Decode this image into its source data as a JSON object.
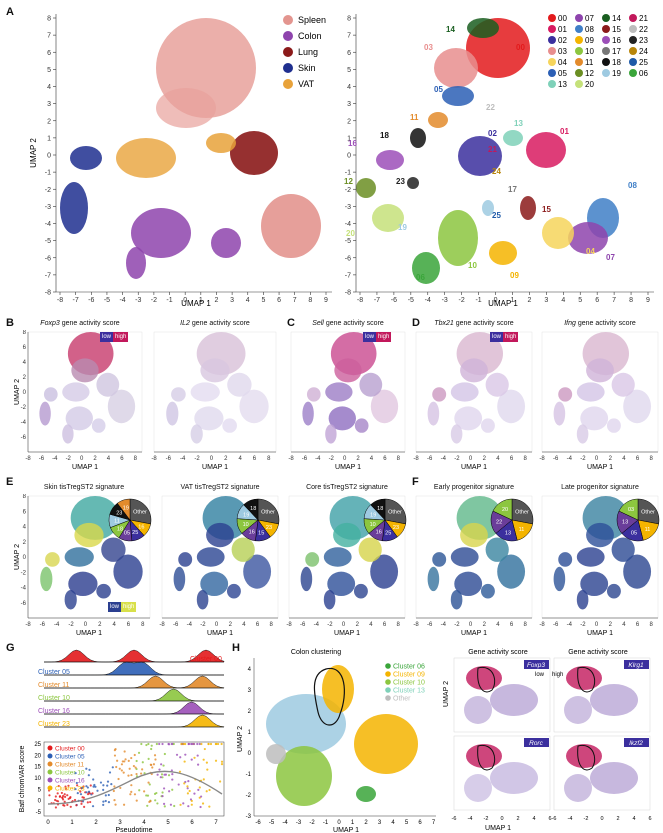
{
  "panels": {
    "A": "A",
    "B": "B",
    "C": "C",
    "D": "D",
    "E": "E",
    "F": "F",
    "G": "G",
    "H": "H"
  },
  "axis": {
    "umap1": "UMAP 1",
    "umap2": "UMAP 2"
  },
  "legendA": [
    {
      "label": "Spleen",
      "color": "#e3958f"
    },
    {
      "label": "Colon",
      "color": "#8e44ad"
    },
    {
      "label": "Lung",
      "color": "#8b1a1a"
    },
    {
      "label": "Skin",
      "color": "#1f2f8f"
    },
    {
      "label": "VAT",
      "color": "#e8a23a"
    }
  ],
  "clusters": [
    {
      "id": "00",
      "color": "#e31a1c"
    },
    {
      "id": "07",
      "color": "#8e44ad"
    },
    {
      "id": "14",
      "color": "#1a5e20"
    },
    {
      "id": "21",
      "color": "#c2185b"
    },
    {
      "id": "01",
      "color": "#d81b60"
    },
    {
      "id": "08",
      "color": "#3f7fc7"
    },
    {
      "id": "15",
      "color": "#8b1a1a"
    },
    {
      "id": "22",
      "color": "#bdbdbd"
    },
    {
      "id": "02",
      "color": "#3b2f9e"
    },
    {
      "id": "09",
      "color": "#f4b400"
    },
    {
      "id": "16",
      "color": "#9c4fb8"
    },
    {
      "id": "23",
      "color": "#222222"
    },
    {
      "id": "03",
      "color": "#e88e8e"
    },
    {
      "id": "10",
      "color": "#8cc63f"
    },
    {
      "id": "17",
      "color": "#777777"
    },
    {
      "id": "24",
      "color": "#b8860b"
    },
    {
      "id": "04",
      "color": "#f6d55c"
    },
    {
      "id": "11",
      "color": "#e38b2c"
    },
    {
      "id": "18",
      "color": "#111111"
    },
    {
      "id": "25",
      "color": "#1e5aa8"
    },
    {
      "id": "05",
      "color": "#2c5fb5"
    },
    {
      "id": "12",
      "color": "#6b8e23"
    },
    {
      "id": "19",
      "color": "#9ecae1"
    },
    {
      "id": "06",
      "color": "#3aa53a"
    },
    {
      "id": "13",
      "color": "#7fd1b9"
    },
    {
      "id": "20",
      "color": "#c5e17a"
    }
  ],
  "titles": {
    "B1": [
      "Foxp3",
      " gene activity score"
    ],
    "B2": [
      "IL2",
      " gene activity score"
    ],
    "C1": [
      "Sell",
      " gene activity score"
    ],
    "D1": [
      "Tbx21",
      " gene activity score"
    ],
    "D2": [
      "Ifng",
      " gene activity score"
    ],
    "E1": "Skin tisTregST2 signature",
    "E2": "VAT tisTregST2 signature",
    "E3": "Core tisTregST2 signature",
    "F1": "Early progenitor signature",
    "F2": "Late progenitor signature",
    "H1": "Colon clustering",
    "H2": "Gene activity score",
    "H3": "Gene activity score"
  },
  "scale": {
    "low": "low",
    "high": "high"
  },
  "pies": {
    "E1": [
      "Other",
      "16",
      "25",
      "05",
      "18",
      "11",
      "23",
      "19"
    ],
    "E2": [
      "Other",
      "23",
      "15",
      "16",
      "10",
      "19",
      "18"
    ],
    "E3": [
      "Other",
      "23",
      "25",
      "16",
      "10",
      "19",
      "18"
    ],
    "F1": [
      "Other",
      "11",
      "13",
      "22",
      "20"
    ],
    "F2": [
      "Other",
      "11",
      "05",
      "13",
      "03"
    ]
  },
  "G": {
    "ridge": [
      "Cluster 00",
      "Cluster 05",
      "Cluster 11",
      "Cluster 10",
      "Cluster 16",
      "Cluster 23"
    ],
    "legend": [
      {
        "label": "Cluster 00",
        "color": "#e31a1c"
      },
      {
        "label": "Cluster 05",
        "color": "#2c5fb5"
      },
      {
        "label": "Cluster 11",
        "color": "#e38b2c"
      },
      {
        "label": "Cluster 10",
        "color": "#8cc63f"
      },
      {
        "label": "Cluster 16",
        "color": "#9c4fb8"
      },
      {
        "label": "Cluster 23",
        "color": "#f4b400"
      }
    ],
    "ylabel": "Batf chromVAR score",
    "xlabel": "Pseudotime"
  },
  "H": {
    "legend": [
      {
        "label": "Cluster 06",
        "color": "#3aa53a"
      },
      {
        "label": "Cluster 09",
        "color": "#f4b400"
      },
      {
        "label": "Cluster 10",
        "color": "#8cc63f"
      },
      {
        "label": "Cluster 13",
        "color": "#7fd1b9"
      },
      {
        "label": "Other",
        "color": "#bdbdbd"
      }
    ],
    "genes": [
      "Foxp3",
      "Klrg1",
      "Rorc",
      "Ikzf2"
    ]
  }
}
